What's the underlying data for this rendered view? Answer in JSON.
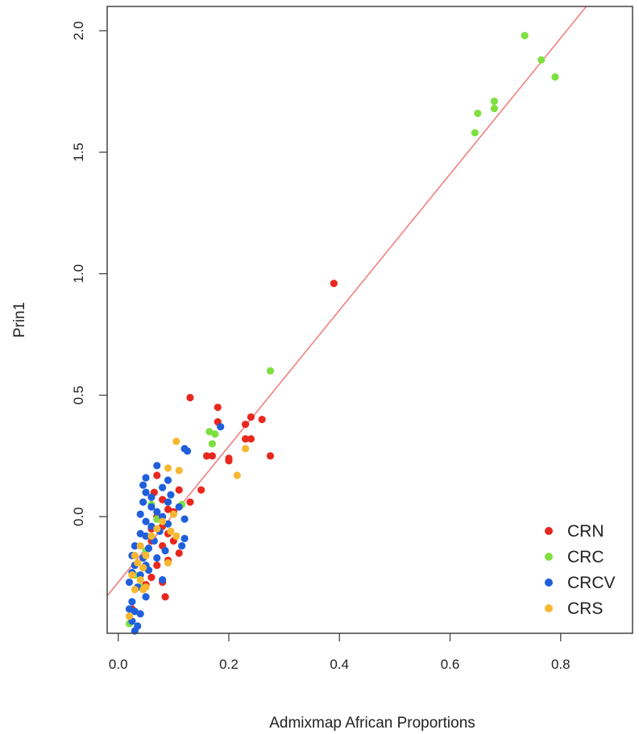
{
  "chart_data": {
    "type": "scatter",
    "title": "",
    "xlabel": "Admixmap African Proportions",
    "ylabel": "Prin1",
    "xlim": [
      -0.02,
      0.93
    ],
    "ylim": [
      -0.48,
      2.1
    ],
    "x_ticks": [
      0.0,
      0.2,
      0.4,
      0.6,
      0.8
    ],
    "x_tick_labels": [
      "0.0",
      "0.2",
      "0.4",
      "0.6",
      "0.8"
    ],
    "y_ticks": [
      0.0,
      0.5,
      1.0,
      1.5,
      2.0
    ],
    "y_tick_labels": [
      "0.0",
      "0.5",
      "1.0",
      "1.5",
      "2.0"
    ],
    "grid": false,
    "legend_position": "bottom-right",
    "fit_line": {
      "color": "#f08080",
      "intercept": -0.27,
      "slope": 2.8
    },
    "series": [
      {
        "name": "CRN",
        "color": "#e8281e",
        "points": [
          [
            0.39,
            0.96
          ],
          [
            0.13,
            0.49
          ],
          [
            0.18,
            0.45
          ],
          [
            0.18,
            0.39
          ],
          [
            0.26,
            0.4
          ],
          [
            0.24,
            0.41
          ],
          [
            0.23,
            0.38
          ],
          [
            0.23,
            0.32
          ],
          [
            0.24,
            0.32
          ],
          [
            0.2,
            0.24
          ],
          [
            0.2,
            0.23
          ],
          [
            0.16,
            0.25
          ],
          [
            0.17,
            0.25
          ],
          [
            0.275,
            0.25
          ],
          [
            0.15,
            0.11
          ],
          [
            0.13,
            0.06
          ],
          [
            0.11,
            0.11
          ],
          [
            0.07,
            0.17
          ],
          [
            0.08,
            0.07
          ],
          [
            0.065,
            0.1
          ],
          [
            0.09,
            0.03
          ],
          [
            0.1,
            0.02
          ],
          [
            0.07,
            0.0
          ],
          [
            0.08,
            -0.04
          ],
          [
            0.06,
            -0.05
          ],
          [
            0.09,
            -0.07
          ],
          [
            0.1,
            -0.1
          ],
          [
            0.06,
            -0.1
          ],
          [
            0.08,
            -0.12
          ],
          [
            0.11,
            -0.15
          ],
          [
            0.09,
            -0.18
          ],
          [
            0.07,
            -0.2
          ],
          [
            0.06,
            -0.25
          ],
          [
            0.08,
            -0.27
          ],
          [
            0.05,
            -0.28
          ],
          [
            0.085,
            -0.33
          ],
          [
            0.03,
            -0.2
          ],
          [
            0.025,
            -0.38
          ]
        ]
      },
      {
        "name": "CRC",
        "color": "#7ee040",
        "points": [
          [
            0.735,
            1.98
          ],
          [
            0.765,
            1.88
          ],
          [
            0.79,
            1.81
          ],
          [
            0.68,
            1.71
          ],
          [
            0.68,
            1.68
          ],
          [
            0.65,
            1.66
          ],
          [
            0.645,
            1.58
          ],
          [
            0.275,
            0.6
          ],
          [
            0.165,
            0.35
          ],
          [
            0.175,
            0.34
          ],
          [
            0.17,
            0.3
          ],
          [
            0.115,
            0.05
          ],
          [
            0.06,
            0.05
          ],
          [
            0.07,
            -0.01
          ],
          [
            0.05,
            -0.14
          ],
          [
            0.03,
            -0.24
          ],
          [
            0.04,
            -0.29
          ],
          [
            0.02,
            -0.44
          ]
        ]
      },
      {
        "name": "CRCV",
        "color": "#1f5fdc",
        "points": [
          [
            0.185,
            0.37
          ],
          [
            0.12,
            0.28
          ],
          [
            0.125,
            0.27
          ],
          [
            0.07,
            0.21
          ],
          [
            0.05,
            0.16
          ],
          [
            0.09,
            0.15
          ],
          [
            0.045,
            0.13
          ],
          [
            0.08,
            0.12
          ],
          [
            0.05,
            0.1
          ],
          [
            0.06,
            0.08
          ],
          [
            0.095,
            0.09
          ],
          [
            0.045,
            0.06
          ],
          [
            0.06,
            0.04
          ],
          [
            0.09,
            0.06
          ],
          [
            0.11,
            0.04
          ],
          [
            0.07,
            0.02
          ],
          [
            0.04,
            0.01
          ],
          [
            0.08,
            0.0
          ],
          [
            0.05,
            -0.02
          ],
          [
            0.09,
            -0.03
          ],
          [
            0.12,
            -0.01
          ],
          [
            0.06,
            -0.04
          ],
          [
            0.04,
            -0.07
          ],
          [
            0.075,
            -0.06
          ],
          [
            0.05,
            -0.08
          ],
          [
            0.065,
            -0.1
          ],
          [
            0.12,
            -0.09
          ],
          [
            0.03,
            -0.12
          ],
          [
            0.055,
            -0.13
          ],
          [
            0.085,
            -0.14
          ],
          [
            0.115,
            -0.12
          ],
          [
            0.025,
            -0.16
          ],
          [
            0.045,
            -0.17
          ],
          [
            0.07,
            -0.17
          ],
          [
            0.03,
            -0.2
          ],
          [
            0.05,
            -0.2
          ],
          [
            0.025,
            -0.23
          ],
          [
            0.04,
            -0.24
          ],
          [
            0.055,
            -0.22
          ],
          [
            0.08,
            -0.26
          ],
          [
            0.02,
            -0.27
          ],
          [
            0.035,
            -0.29
          ],
          [
            0.05,
            -0.33
          ],
          [
            0.025,
            -0.35
          ],
          [
            0.02,
            -0.38
          ],
          [
            0.03,
            -0.39
          ],
          [
            0.04,
            -0.4
          ],
          [
            0.025,
            -0.43
          ],
          [
            0.035,
            -0.45
          ],
          [
            0.03,
            -0.47
          ]
        ]
      },
      {
        "name": "CRS",
        "color": "#f7b731",
        "points": [
          [
            0.105,
            0.31
          ],
          [
            0.23,
            0.28
          ],
          [
            0.215,
            0.17
          ],
          [
            0.09,
            0.2
          ],
          [
            0.11,
            0.19
          ],
          [
            0.1,
            0.01
          ],
          [
            0.08,
            -0.02
          ],
          [
            0.07,
            -0.05
          ],
          [
            0.095,
            -0.06
          ],
          [
            0.105,
            -0.08
          ],
          [
            0.06,
            -0.08
          ],
          [
            0.04,
            -0.12
          ],
          [
            0.05,
            -0.16
          ],
          [
            0.035,
            -0.19
          ],
          [
            0.03,
            -0.16
          ],
          [
            0.09,
            -0.19
          ],
          [
            0.045,
            -0.21
          ],
          [
            0.025,
            -0.24
          ],
          [
            0.04,
            -0.26
          ],
          [
            0.05,
            -0.29
          ],
          [
            0.03,
            -0.3
          ],
          [
            0.045,
            -0.3
          ],
          [
            0.02,
            -0.41
          ]
        ]
      }
    ]
  }
}
